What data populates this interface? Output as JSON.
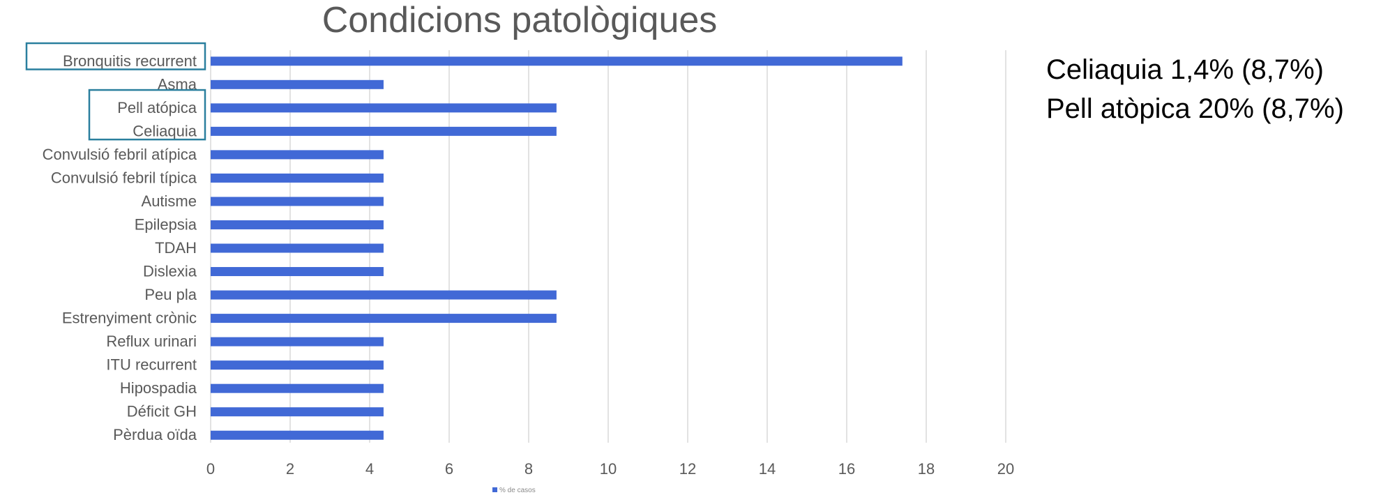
{
  "chart_data": {
    "type": "bar",
    "orientation": "horizontal",
    "title": "Condicions patològiques",
    "categories": [
      "Bronquitis recurrent",
      "Asma",
      "Pell atópica",
      "Celiaquia",
      "Convulsió febril atípica",
      "Convulsió febril típica",
      "Autisme",
      "Epilepsia",
      "TDAH",
      "Dislexia",
      "Peu pla",
      "Estrenyiment crònic",
      "Reflux urinari",
      "ITU recurrent",
      "Hipospadia",
      "Déficit GH",
      "Pèrdua oïda"
    ],
    "series": [
      {
        "name": "% de casos",
        "values": [
          17.4,
          4.35,
          8.7,
          8.7,
          4.35,
          4.35,
          4.35,
          4.35,
          4.35,
          4.35,
          8.7,
          8.7,
          4.35,
          4.35,
          4.35,
          4.35,
          4.35
        ]
      }
    ],
    "xlim": [
      0,
      20
    ],
    "xticks": [
      "0",
      "2",
      "4",
      "6",
      "8",
      "10",
      "12",
      "14",
      "16",
      "18",
      "20"
    ],
    "grid": true,
    "legend_position": "bottom",
    "highlighted_categories": [
      "Bronquitis recurrent",
      "Pell atópica",
      "Celiaquia"
    ]
  },
  "colors": {
    "bar": "#4169d6",
    "grid": "#d9d9d9",
    "highlight_box": "#2a7f9e",
    "text": "#595959"
  },
  "notes": [
    "Celiaquia 1,4% (8,7%)",
    "Pell atòpica 20% (8,7%)"
  ]
}
